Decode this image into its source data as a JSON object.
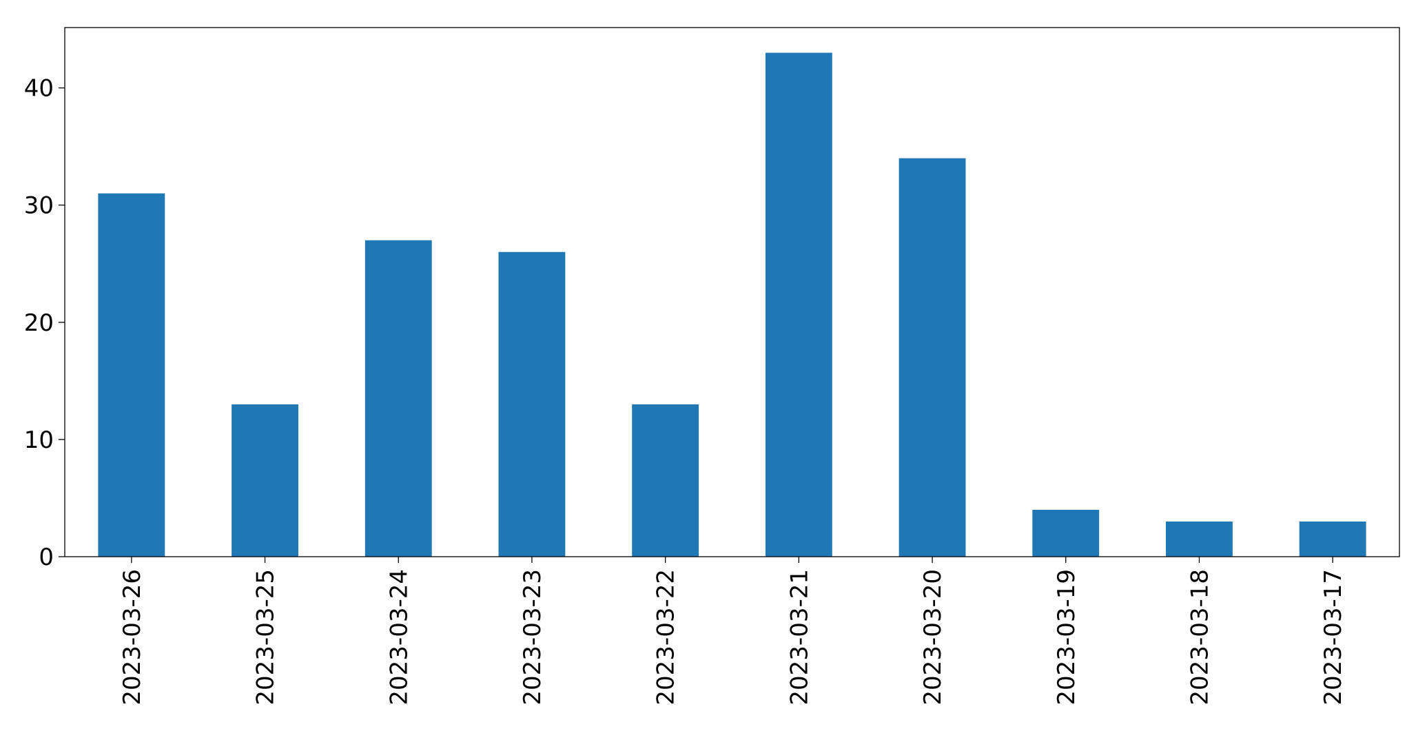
{
  "chart_data": {
    "type": "bar",
    "categories": [
      "2023-03-26",
      "2023-03-25",
      "2023-03-24",
      "2023-03-23",
      "2023-03-22",
      "2023-03-21",
      "2023-03-20",
      "2023-03-19",
      "2023-03-18",
      "2023-03-17"
    ],
    "values": [
      31,
      13,
      27,
      26,
      13,
      43,
      34,
      4,
      3,
      3
    ],
    "color": "#1f77b4",
    "ylim": [
      0,
      45.15
    ],
    "yticks": [
      0,
      10,
      20,
      30,
      40
    ],
    "grid": false
  }
}
